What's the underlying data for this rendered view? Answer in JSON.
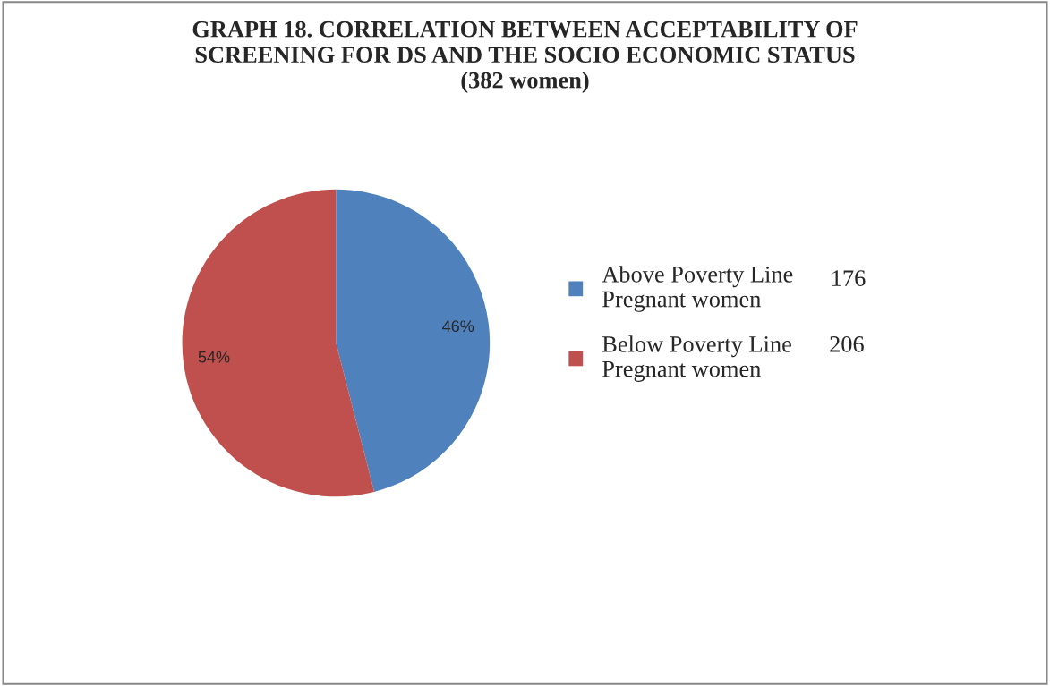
{
  "chart_data": {
    "type": "pie",
    "title": "GRAPH 18. CORRELATION BETWEEN ACCEPTABILITY OF\nSCREENING FOR DS AND THE SOCIO ECONOMIC STATUS\n(382 women)",
    "categories": [
      "Above Poverty Line\nPregnant women",
      "Below Poverty Line\nPregnant women"
    ],
    "values": [
      46,
      54
    ],
    "value_labels": [
      "46%",
      "54%"
    ],
    "colors": [
      "#4f81bd",
      "#c0504d"
    ],
    "annotations": [
      "176",
      "206"
    ],
    "legend": "right"
  }
}
